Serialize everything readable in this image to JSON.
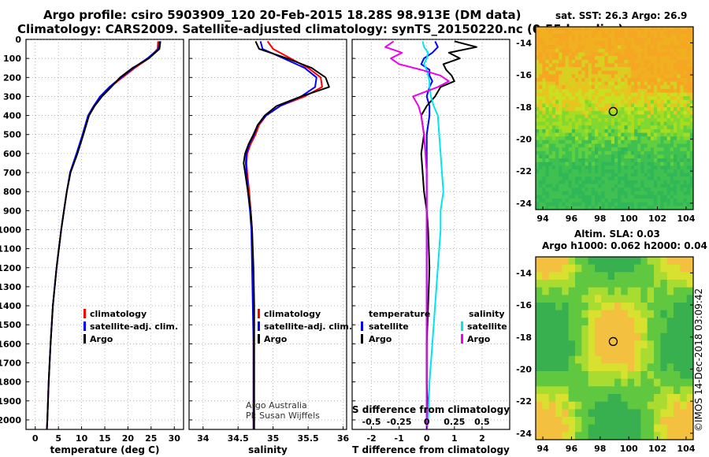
{
  "title": {
    "line1": "Argo profile: csiro 5903909_120 20-Feb-2015 18.28S 98.913E (DM data)",
    "line2": "Climatology: CARS2009. Satellite-adjusted climatology: synTS_20150220.nc (0.55d earlier)"
  },
  "colors": {
    "climatology": "#ff0000",
    "satellite": "#0000ff",
    "argo": "#000000",
    "sat_salinity": "#00e5ee",
    "argo_salinity": "#ee00ee"
  },
  "depth_ticks": [
    "0",
    "100",
    "200",
    "300",
    "400",
    "500",
    "600",
    "700",
    "800",
    "900",
    "1000",
    "1100",
    "1200",
    "1300",
    "1400",
    "1500",
    "1600",
    "1700",
    "1800",
    "1900",
    "2000"
  ],
  "chart_data": [
    {
      "type": "line",
      "xlabel": "temperature (deg C)",
      "xticks": [
        "0",
        "5",
        "10",
        "15",
        "20",
        "25",
        "30"
      ],
      "xlim": [
        -2,
        32
      ],
      "ylim": [
        0,
        2050
      ],
      "legend": {
        "placement": "bottom-center",
        "entries": [
          "climatology",
          "satellite-adj. clim.",
          "Argo"
        ]
      },
      "depth": [
        10,
        50,
        100,
        150,
        200,
        250,
        300,
        350,
        400,
        500,
        600,
        700,
        800,
        900,
        1000,
        1200,
        1400,
        1600,
        1800,
        2000,
        2050
      ],
      "series": [
        {
          "name": "climatology",
          "values": [
            26.5,
            26.4,
            24.5,
            21.5,
            18.8,
            16.2,
            14.2,
            12.8,
            11.6,
            10.3,
            9.0,
            7.6,
            6.8,
            6.2,
            5.6,
            4.6,
            3.8,
            3.3,
            2.9,
            2.6,
            2.5
          ]
        },
        {
          "name": "satellite-adj. clim.",
          "values": [
            26.8,
            26.6,
            24.2,
            21.2,
            18.5,
            16.0,
            14.0,
            12.6,
            11.4,
            10.2,
            8.9,
            7.5,
            6.8,
            6.2,
            5.6,
            4.6,
            3.8,
            3.3,
            2.9,
            2.6,
            2.5
          ]
        },
        {
          "name": "Argo",
          "values": [
            27.0,
            26.8,
            24.5,
            21.0,
            18.3,
            16.4,
            14.4,
            12.8,
            11.6,
            10.4,
            9.1,
            7.6,
            6.8,
            6.2,
            5.6,
            4.6,
            3.8,
            3.3,
            2.9,
            2.6,
            2.5
          ]
        }
      ]
    },
    {
      "type": "line",
      "xlabel": "salinity",
      "xticks": [
        "34",
        "34.5",
        "35",
        "35.5",
        "36"
      ],
      "xlim": [
        33.8,
        36.05
      ],
      "ylim": [
        0,
        2050
      ],
      "legend": {
        "placement": "bottom-center",
        "entries": [
          "climatology",
          "satellite-adj. clim.",
          "Argo"
        ]
      },
      "annotations": [
        "Argo Australia",
        "PI: Susan Wijffels"
      ],
      "depth": [
        10,
        50,
        100,
        150,
        200,
        250,
        300,
        350,
        400,
        450,
        500,
        550,
        600,
        650,
        700,
        800,
        900,
        1000,
        1200,
        1400,
        1600,
        1800,
        2000,
        2050
      ],
      "series": [
        {
          "name": "climatology",
          "values": [
            34.92,
            35.0,
            35.25,
            35.5,
            35.68,
            35.7,
            35.45,
            35.1,
            34.9,
            34.8,
            34.75,
            34.68,
            34.63,
            34.62,
            34.63,
            34.66,
            34.68,
            34.7,
            34.71,
            34.72,
            34.72,
            34.72,
            34.72,
            34.72
          ]
        },
        {
          "name": "satellite-adj. clim.",
          "values": [
            34.82,
            34.85,
            35.15,
            35.45,
            35.62,
            35.6,
            35.4,
            35.1,
            34.9,
            34.78,
            34.73,
            34.66,
            34.62,
            34.61,
            34.62,
            34.64,
            34.67,
            34.69,
            34.7,
            34.71,
            34.72,
            34.72,
            34.72,
            34.72
          ]
        },
        {
          "name": "Argo",
          "values": [
            34.75,
            34.8,
            35.2,
            35.55,
            35.75,
            35.8,
            35.4,
            35.05,
            34.88,
            34.78,
            34.72,
            34.65,
            34.6,
            34.58,
            34.6,
            34.64,
            34.68,
            34.7,
            34.72,
            34.73,
            34.73,
            34.73,
            34.73,
            34.73
          ]
        }
      ]
    },
    {
      "type": "line",
      "xlabel": "T difference from climatology",
      "xticks": [
        "-2",
        "-1",
        "0",
        "1",
        "2"
      ],
      "x2label": "S difference from climatology",
      "x2ticks": [
        "-0.5",
        "-0.25",
        "0",
        "0.25",
        "0.5"
      ],
      "xlim": [
        -2.7,
        3.0
      ],
      "ylim": [
        0,
        2050
      ],
      "legend": {
        "placement": "bottom",
        "temperature": [
          "satellite",
          "Argo"
        ],
        "salinity": [
          "satellite",
          "Argo"
        ],
        "temperature_heading": "temperature",
        "salinity_heading": "salinity"
      },
      "depth": [
        10,
        40,
        70,
        100,
        130,
        160,
        190,
        220,
        250,
        300,
        350,
        400,
        500,
        600,
        700,
        800,
        900,
        1000,
        1200,
        1400,
        1600,
        1800,
        2000,
        2050
      ],
      "series": [
        {
          "name": "temperature satellite",
          "values": [
            0.3,
            0.4,
            0.2,
            -0.1,
            -0.2,
            0.1,
            0.1,
            0.2,
            0.1,
            0.0,
            0.1,
            0.1,
            0.0,
            0.0,
            0.0,
            0.0,
            0.0,
            0.0,
            0.0,
            0.0,
            0.0,
            0.0,
            0.0,
            0.0
          ]
        },
        {
          "name": "temperature Argo",
          "values": [
            1.0,
            1.8,
            0.8,
            1.2,
            0.6,
            0.7,
            0.9,
            1.0,
            0.5,
            0.3,
            0.0,
            -0.2,
            -0.1,
            -0.2,
            -0.15,
            -0.1,
            0.0,
            0.05,
            0.1,
            0.05,
            0.0,
            0.0,
            0.05,
            0.0
          ]
        },
        {
          "name": "salinity satellite",
          "values": [
            -0.15,
            -0.1,
            0.05,
            0.0,
            -0.1,
            0.0,
            0.05,
            0.1,
            0.1,
            0.15,
            0.25,
            0.4,
            0.45,
            0.5,
            0.55,
            0.6,
            0.5,
            0.5,
            0.4,
            0.3,
            0.2,
            0.1,
            0.05,
            0.0
          ]
        },
        {
          "name": "salinity Argo",
          "values": [
            -1.2,
            -1.5,
            -0.9,
            -1.3,
            -1.0,
            -0.2,
            0.5,
            0.8,
            0.4,
            -0.5,
            -0.3,
            -0.2,
            -0.1,
            -0.05,
            0.0,
            0.0,
            0.0,
            0.0,
            0.0,
            0.0,
            0.0,
            0.0,
            0.0,
            0.0
          ]
        }
      ]
    },
    {
      "type": "heatmap",
      "title": "sat. SST: 26.3 Argo: 26.9",
      "xticks": [
        "94",
        "96",
        "98",
        "100",
        "102",
        "104"
      ],
      "yticks": [
        "-14",
        "-16",
        "-18",
        "-20",
        "-22",
        "-24"
      ],
      "xlim": [
        93.5,
        104.5
      ],
      "ylim": [
        -24.4,
        -13.0
      ],
      "marker": {
        "lon": 98.913,
        "lat": -18.28
      }
    },
    {
      "type": "heatmap",
      "title_line1": "Altim. SLA: 0.03",
      "title_line2": "Argo h1000: 0.062 h2000: 0.04",
      "xticks": [
        "94",
        "96",
        "98",
        "100",
        "102",
        "104"
      ],
      "yticks": [
        "-14",
        "-16",
        "-18",
        "-20",
        "-22",
        "-24"
      ],
      "xlim": [
        93.5,
        104.5
      ],
      "ylim": [
        -24.4,
        -13.0
      ],
      "marker": {
        "lon": 98.913,
        "lat": -18.28
      }
    }
  ],
  "footer_stamp": "©IMOS 14-Dec-2018 03:09:42"
}
